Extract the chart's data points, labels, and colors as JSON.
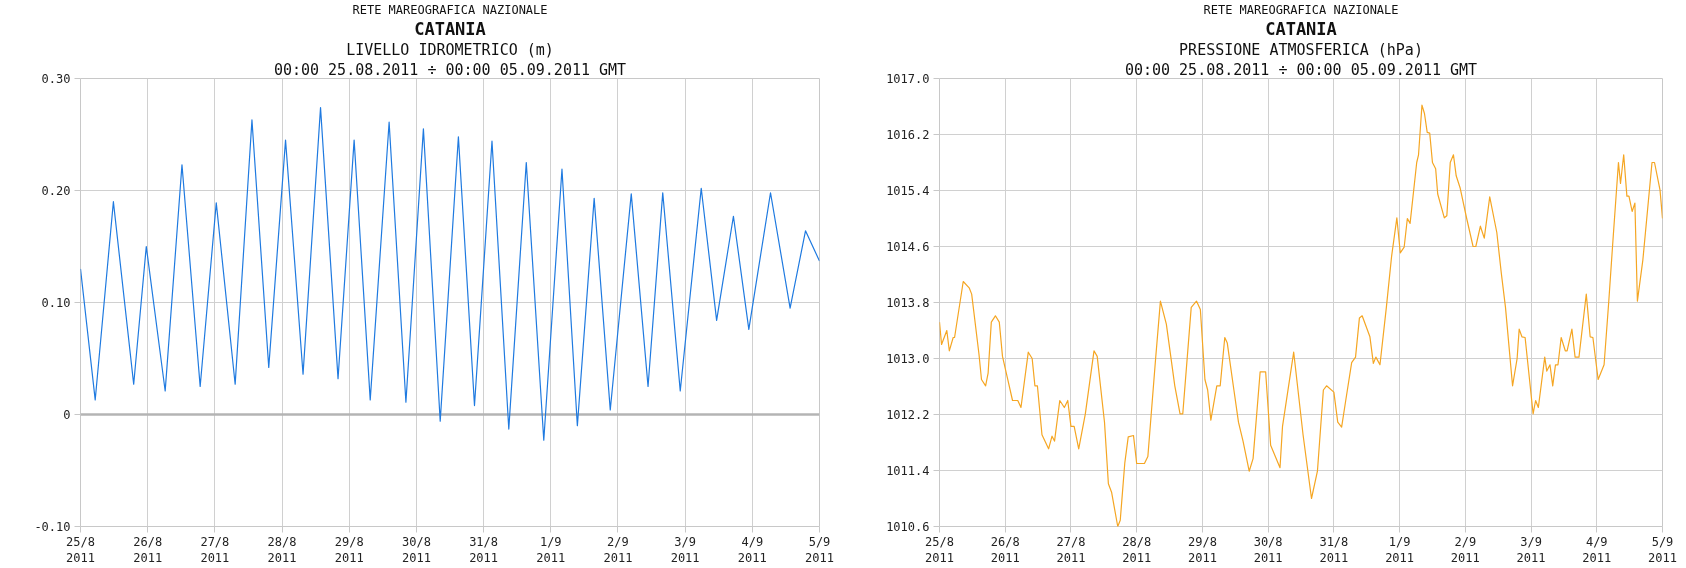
{
  "chart_data": [
    {
      "type": "line",
      "title": "CATANIA",
      "subtitle": "LIVELLO IDROMETRICO (m)",
      "annotations": [
        "RETE MAREOGRAFICA NAZIONALE",
        "00:00 25.08.2011 ÷ 00:00 05.09.2011 GMT"
      ],
      "x": [
        "2011-08-25T00:00",
        "2011-08-25T05:15",
        "2011-08-25T11:45",
        "2011-08-25T19:00",
        "2011-08-25T23:30",
        "2011-08-26T06:15",
        "2011-08-26T12:15",
        "2011-08-26T18:45",
        "2011-08-27T00:30",
        "2011-08-27T07:15",
        "2011-08-27T13:15",
        "2011-08-27T19:15",
        "2011-08-28T01:15",
        "2011-08-28T07:30",
        "2011-08-28T13:45",
        "2011-08-28T20:00",
        "2011-08-29T01:45",
        "2011-08-29T07:30",
        "2011-08-29T14:15",
        "2011-08-29T20:15",
        "2011-08-30T02:30",
        "2011-08-30T08:30",
        "2011-08-30T15:00",
        "2011-08-30T20:45",
        "2011-08-31T03:00",
        "2011-08-31T09:00",
        "2011-08-31T15:15",
        "2011-08-31T21:30",
        "2011-09-01T04:00",
        "2011-09-01T09:30",
        "2011-09-01T15:30",
        "2011-09-01T21:15",
        "2011-09-02T04:45",
        "2011-09-02T10:45",
        "2011-09-02T16:00",
        "2011-09-02T22:15",
        "2011-09-03T05:45",
        "2011-09-03T11:15",
        "2011-09-03T17:15",
        "2011-09-03T22:45",
        "2011-09-04T06:30",
        "2011-09-04T13:30",
        "2011-09-04T19:00",
        "2011-09-05T00:00"
      ],
      "series": [
        {
          "color": "#1f7ae0",
          "values": [
            0.13,
            0.013,
            0.19,
            0.027,
            0.15,
            0.021,
            0.223,
            0.025,
            0.189,
            0.027,
            0.263,
            0.042,
            0.245,
            0.036,
            0.274,
            0.032,
            0.245,
            0.013,
            0.261,
            0.011,
            0.255,
            -0.006,
            0.248,
            0.008,
            0.244,
            -0.013,
            0.225,
            -0.023,
            0.219,
            -0.01,
            0.193,
            0.004,
            0.197,
            0.025,
            0.198,
            0.021,
            0.202,
            0.084,
            0.177,
            0.076,
            0.198,
            0.095,
            0.164,
            0.137
          ]
        }
      ],
      "xlim": [
        "2011-08-25T00:00",
        "2011-09-05T00:00"
      ],
      "ylim": [
        -0.1,
        0.3
      ],
      "xticks": [
        {
          "value": "2011-08-25",
          "label": "25/8\n2011"
        },
        {
          "value": "2011-08-26",
          "label": "26/8\n2011"
        },
        {
          "value": "2011-08-27",
          "label": "27/8\n2011"
        },
        {
          "value": "2011-08-28",
          "label": "28/8\n2011"
        },
        {
          "value": "2011-08-29",
          "label": "29/8\n2011"
        },
        {
          "value": "2011-08-30",
          "label": "30/8\n2011"
        },
        {
          "value": "2011-08-31",
          "label": "31/8\n2011"
        },
        {
          "value": "2011-09-01",
          "label": "1/9\n2011"
        },
        {
          "value": "2011-09-02",
          "label": "2/9\n2011"
        },
        {
          "value": "2011-09-03",
          "label": "3/9\n2011"
        },
        {
          "value": "2011-09-04",
          "label": "4/9\n2011"
        },
        {
          "value": "2011-09-05",
          "label": "5/9\n2011"
        }
      ],
      "yticks": [
        {
          "value": -0.1,
          "label": "-0.10"
        },
        {
          "value": 0,
          "label": "0"
        },
        {
          "value": 0.1,
          "label": "0.10"
        },
        {
          "value": 0.2,
          "label": "0.20"
        },
        {
          "value": 0.3,
          "label": "0.30"
        }
      ],
      "grid": true,
      "ref_lines": [
        {
          "axis": "y",
          "value": 0,
          "color": "#b4b4b4"
        }
      ]
    },
    {
      "type": "line",
      "title": "CATANIA",
      "subtitle": "PRESSIONE ATMOSFERICA (hPa)",
      "annotations": [
        "RETE MAREOGRAFICA NAZIONALE",
        "00:00 25.08.2011 ÷ 00:00 05.09.2011 GMT"
      ],
      "x": [
        "2011-08-25T00:00",
        "2011-08-25T00:45",
        "2011-08-25T02:40",
        "2011-08-25T03:35",
        "2011-08-25T05:00",
        "2011-08-25T05:30",
        "2011-08-25T08:40",
        "2011-08-25T10:50",
        "2011-08-25T11:45",
        "2011-08-25T14:25",
        "2011-08-25T15:20",
        "2011-08-25T16:50",
        "2011-08-25T17:45",
        "2011-08-25T18:55",
        "2011-08-25T20:25",
        "2011-08-25T21:50",
        "2011-08-25T23:00",
        "2011-08-26T00:45",
        "2011-08-26T02:40",
        "2011-08-26T04:35",
        "2011-08-26T05:45",
        "2011-08-26T08:25",
        "2011-08-26T09:50",
        "2011-08-26T10:50",
        "2011-08-26T11:45",
        "2011-08-26T13:25",
        "2011-08-26T15:50",
        "2011-08-26T17:05",
        "2011-08-26T18:00",
        "2011-08-26T19:55",
        "2011-08-26T21:35",
        "2011-08-26T22:50",
        "2011-08-27T00:00",
        "2011-08-27T01:10",
        "2011-08-27T02:50",
        "2011-08-27T05:15",
        "2011-08-27T08:25",
        "2011-08-27T09:35",
        "2011-08-27T12:15",
        "2011-08-27T13:40",
        "2011-08-27T14:50",
        "2011-08-27T17:05",
        "2011-08-27T18:00",
        "2011-08-27T19:40",
        "2011-08-27T20:55",
        "2011-08-27T22:50",
        "2011-08-28T00:00",
        "2011-08-28T02:50",
        "2011-08-28T04:05",
        "2011-08-28T06:55",
        "2011-08-28T08:40",
        "2011-08-28T10:50",
        "2011-08-28T13:55",
        "2011-08-28T15:50",
        "2011-08-28T16:50",
        "2011-08-28T19:55",
        "2011-08-28T21:50",
        "2011-08-28T23:15",
        "2011-08-29T00:55",
        "2011-08-29T01:55",
        "2011-08-29T03:05",
        "2011-08-29T05:15",
        "2011-08-29T06:30",
        "2011-08-29T08:10",
        "2011-08-29T09:05",
        "2011-08-29T11:30",
        "2011-08-29T13:10",
        "2011-08-29T14:50",
        "2011-08-29T17:05",
        "2011-08-29T18:30",
        "2011-08-29T21:05",
        "2011-08-29T23:05",
        "2011-08-30T00:55",
        "2011-08-30T04:20",
        "2011-08-30T05:15",
        "2011-08-30T09:20",
        "2011-08-30T12:45",
        "2011-08-30T15:50",
        "2011-08-30T18:00",
        "2011-08-30T20:10",
        "2011-08-30T21:20",
        "2011-08-31T00:00",
        "2011-08-31T01:25",
        "2011-08-31T02:50",
        "2011-08-31T04:20",
        "2011-08-31T06:30",
        "2011-08-31T07:55",
        "2011-08-31T09:20",
        "2011-08-31T10:20",
        "2011-08-31T13:10",
        "2011-08-31T14:25",
        "2011-08-31T15:20",
        "2011-08-31T16:50",
        "2011-08-31T19:10",
        "2011-08-31T21:05",
        "2011-08-31T23:00",
        "2011-09-01T00:15",
        "2011-09-01T01:40",
        "2011-09-01T02:50",
        "2011-09-01T03:50",
        "2011-09-01T06:15",
        "2011-09-01T06:55",
        "2011-09-01T08:10",
        "2011-09-01T09:05",
        "2011-09-01T10:05",
        "2011-09-01T11:00",
        "2011-09-01T12:00",
        "2011-09-01T13:10",
        "2011-09-01T13:55",
        "2011-09-01T16:20",
        "2011-09-01T17:15",
        "2011-09-01T18:30",
        "2011-09-01T19:40",
        "2011-09-01T20:40",
        "2011-09-01T22:05",
        "2011-09-02T00:30",
        "2011-09-02T02:50",
        "2011-09-02T03:50",
        "2011-09-02T05:30",
        "2011-09-02T06:55",
        "2011-09-02T08:55",
        "2011-09-02T11:30",
        "2011-09-02T13:10",
        "2011-09-02T14:40",
        "2011-09-02T17:15",
        "2011-09-02T18:55",
        "2011-09-02T19:40",
        "2011-09-02T20:40",
        "2011-09-02T21:50",
        "2011-09-03T00:45",
        "2011-09-03T01:40",
        "2011-09-03T02:40",
        "2011-09-03T05:00",
        "2011-09-03T05:45",
        "2011-09-03T06:55",
        "2011-09-03T07:55",
        "2011-09-03T08:55",
        "2011-09-03T09:50",
        "2011-09-03T11:00",
        "2011-09-03T12:30",
        "2011-09-03T13:10",
        "2011-09-03T14:55",
        "2011-09-03T16:05",
        "2011-09-03T17:30",
        "2011-09-03T20:10",
        "2011-09-03T21:35",
        "2011-09-03T22:35",
        "2011-09-04T00:30",
        "2011-09-04T02:40",
        "2011-09-04T04:20",
        "2011-09-04T06:00",
        "2011-09-04T07:55",
        "2011-09-04T08:40",
        "2011-09-04T09:50",
        "2011-09-04T11:00",
        "2011-09-04T11:45",
        "2011-09-04T12:55",
        "2011-09-04T13:55",
        "2011-09-04T14:50",
        "2011-09-04T16:50",
        "2011-09-04T20:10",
        "2011-09-04T21:05",
        "2011-09-04T23:05",
        "2011-09-05T00:00"
      ],
      "series": [
        {
          "color": "#f5a623",
          "values": [
            1013.52,
            1013.2,
            1013.4,
            1013.11,
            1013.3,
            1013.3,
            1014.1,
            1014.01,
            1013.92,
            1013.06,
            1012.7,
            1012.61,
            1012.79,
            1013.52,
            1013.61,
            1013.52,
            1013.03,
            1012.73,
            1012.4,
            1012.4,
            1012.3,
            1013.09,
            1013.0,
            1012.61,
            1012.61,
            1011.91,
            1011.71,
            1011.89,
            1011.82,
            1012.4,
            1012.3,
            1012.4,
            1012.03,
            1012.03,
            1011.71,
            1012.21,
            1013.11,
            1013.03,
            1012.09,
            1011.21,
            1011.09,
            1010.6,
            1010.69,
            1011.51,
            1011.88,
            1011.9,
            1011.5,
            1011.5,
            1011.6,
            1013.0,
            1013.82,
            1013.49,
            1012.61,
            1012.21,
            1012.21,
            1013.73,
            1013.82,
            1013.7,
            1012.7,
            1012.55,
            1012.12,
            1012.61,
            1012.61,
            1013.3,
            1013.22,
            1012.55,
            1012.09,
            1011.82,
            1011.39,
            1011.57,
            1012.81,
            1012.81,
            1011.76,
            1011.44,
            1012.03,
            1013.09,
            1011.91,
            1011.0,
            1011.39,
            1012.55,
            1012.61,
            1012.52,
            1012.09,
            1012.02,
            1012.4,
            1012.94,
            1013.02,
            1013.58,
            1013.61,
            1013.31,
            1012.93,
            1013.02,
            1012.91,
            1013.73,
            1014.46,
            1015.01,
            1014.51,
            1014.59,
            1015.0,
            1014.93,
            1015.8,
            1015.91,
            1016.62,
            1016.5,
            1016.23,
            1016.22,
            1015.8,
            1015.71,
            1015.35,
            1015.01,
            1015.04,
            1015.8,
            1015.91,
            1015.61,
            1015.44,
            1015.0,
            1014.6,
            1014.6,
            1014.89,
            1014.72,
            1015.31,
            1014.8,
            1014.21,
            1013.73,
            1012.61,
            1013.0,
            1013.42,
            1013.31,
            1013.3,
            1012.21,
            1012.4,
            1012.3,
            1013.02,
            1012.82,
            1012.91,
            1012.61,
            1012.91,
            1012.91,
            1013.3,
            1013.11,
            1013.11,
            1013.42,
            1013.02,
            1013.02,
            1013.92,
            1013.31,
            1013.3,
            1012.7,
            1012.91,
            1013.79,
            1014.74,
            1015.8,
            1015.5,
            1015.91,
            1015.32,
            1015.32,
            1015.1,
            1015.22,
            1013.82,
            1014.41,
            1015.8,
            1015.8,
            1015.41,
            1015.0
          ]
        }
      ],
      "xlim": [
        "2011-08-25T00:00",
        "2011-09-05T00:00"
      ],
      "ylim": [
        1010.6,
        1017.0
      ],
      "xticks": [
        {
          "value": "2011-08-25",
          "label": "25/8\n2011"
        },
        {
          "value": "2011-08-26",
          "label": "26/8\n2011"
        },
        {
          "value": "2011-08-27",
          "label": "27/8\n2011"
        },
        {
          "value": "2011-08-28",
          "label": "28/8\n2011"
        },
        {
          "value": "2011-08-29",
          "label": "29/8\n2011"
        },
        {
          "value": "2011-08-30",
          "label": "30/8\n2011"
        },
        {
          "value": "2011-08-31",
          "label": "31/8\n2011"
        },
        {
          "value": "2011-09-01",
          "label": "1/9\n2011"
        },
        {
          "value": "2011-09-02",
          "label": "2/9\n2011"
        },
        {
          "value": "2011-09-03",
          "label": "3/9\n2011"
        },
        {
          "value": "2011-09-04",
          "label": "4/9\n2011"
        },
        {
          "value": "2011-09-05",
          "label": "5/9\n2011"
        }
      ],
      "yticks": [
        {
          "value": 1010.6,
          "label": "1010.6"
        },
        {
          "value": 1011.4,
          "label": "1011.4"
        },
        {
          "value": 1012.2,
          "label": "1012.2"
        },
        {
          "value": 1013.0,
          "label": "1013.0"
        },
        {
          "value": 1013.8,
          "label": "1013.8"
        },
        {
          "value": 1014.6,
          "label": "1014.6"
        },
        {
          "value": 1015.4,
          "label": "1015.4"
        },
        {
          "value": 1016.2,
          "label": "1016.2"
        },
        {
          "value": 1017.0,
          "label": "1017.0"
        }
      ],
      "grid": true
    }
  ]
}
